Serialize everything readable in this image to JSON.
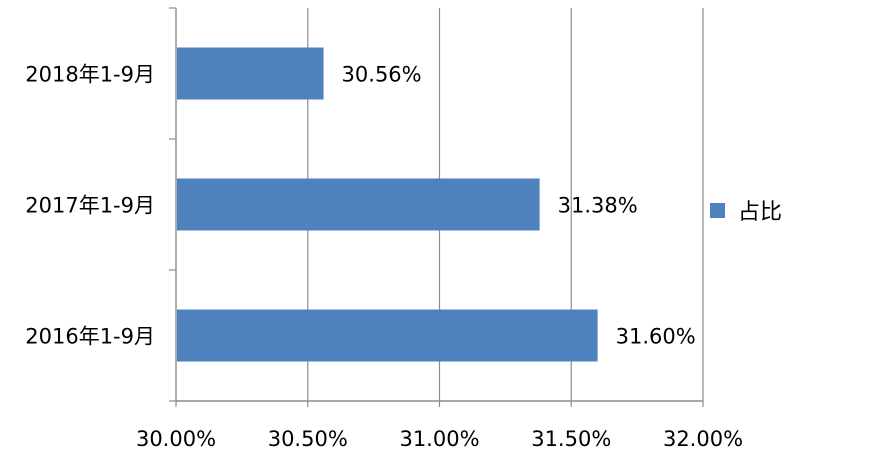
{
  "chart_data": {
    "type": "bar",
    "orientation": "horizontal",
    "categories": [
      "2018年1-9月",
      "2017年1-9月",
      "2016年1-9月"
    ],
    "values": [
      30.56,
      31.38,
      31.6
    ],
    "data_labels": [
      "30.56%",
      "31.38%",
      "31.60%"
    ],
    "series": [
      {
        "name": "占比",
        "values": [
          30.56,
          31.38,
          31.6
        ]
      }
    ],
    "xlim": [
      30.0,
      32.0
    ],
    "x_ticks": [
      30.0,
      30.5,
      31.0,
      31.5,
      32.0
    ],
    "x_tick_labels": [
      "30.00%",
      "30.50%",
      "31.00%",
      "31.50%",
      "32.00%"
    ],
    "grid": "vertical",
    "legend_position": "right",
    "bar_color": "#4F81BD",
    "title": "",
    "xlabel": "",
    "ylabel": ""
  }
}
